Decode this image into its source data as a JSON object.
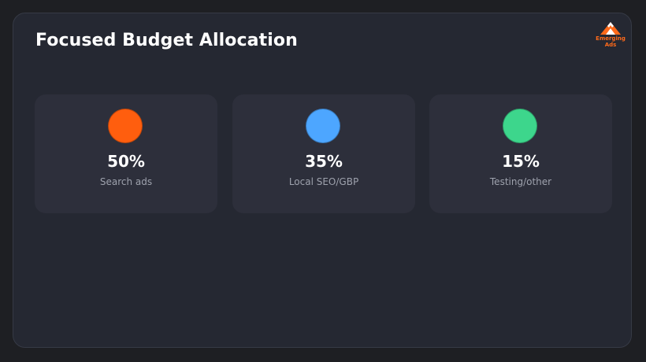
{
  "header": {
    "title": "Focused Budget Allocation"
  },
  "logo": {
    "icon": "mountain-logo-icon",
    "line1": "Emerging",
    "line2": "Ads",
    "color": "#ff6a1a"
  },
  "cards": [
    {
      "value": "50%",
      "label": "Search ads",
      "color": "#ff5e0e"
    },
    {
      "value": "35%",
      "label": "Local SEO/GBP",
      "color": "#4da6ff"
    },
    {
      "value": "15%",
      "label": "Testing/other",
      "color": "#3dd68c"
    }
  ]
}
